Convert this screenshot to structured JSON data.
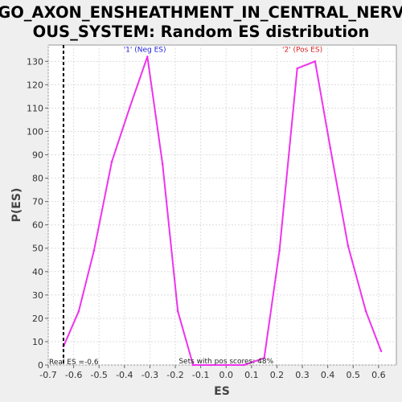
{
  "title_lines": [
    "GO_AXON_ENSHEATHMENT_IN_CENTRAL_NERV",
    "OUS_SYSTEM: Random ES distribution"
  ],
  "colors": {
    "series": "#ee33ee",
    "neg_label": "#2222dd",
    "pos_label": "#dd2222",
    "plot_bg": "#ffffff",
    "page_bg": "#efefef"
  },
  "chart_data": {
    "type": "line",
    "title": "GO_AXON_ENSHEATHMENT_IN_CENTRAL_NERVOUS_SYSTEM: Random ES distribution",
    "xlabel": "ES",
    "ylabel": "P(ES)",
    "xlim": [
      -0.7,
      0.67
    ],
    "ylim": [
      0,
      137
    ],
    "xticks": [
      -0.7,
      -0.6,
      -0.5,
      -0.4,
      -0.3,
      -0.2,
      -0.1,
      0.0,
      0.1,
      0.2,
      0.3,
      0.4,
      0.5,
      0.6
    ],
    "xtick_labels": [
      "-0.7",
      "-0.6",
      "-0.5",
      "-0.4",
      "-0.3",
      "-0.2",
      "-0.1",
      "0.0",
      "0.1",
      "0.2",
      "0.3",
      "0.4",
      "0.5",
      "0.6"
    ],
    "yticks": [
      0,
      10,
      20,
      30,
      40,
      50,
      60,
      70,
      80,
      90,
      100,
      110,
      120,
      130
    ],
    "ytick_labels": [
      "0",
      "10",
      "20",
      "30",
      "40",
      "50",
      "60",
      "70",
      "80",
      "90",
      "100",
      "110",
      "120",
      "130"
    ],
    "grid": true,
    "series": [
      {
        "x": [
          -0.64,
          -0.58,
          -0.52,
          -0.45,
          -0.38,
          -0.31,
          -0.25,
          -0.19,
          -0.13,
          -0.06,
          0.0,
          0.07,
          0.15,
          0.21,
          0.28,
          0.35,
          0.41,
          0.48,
          0.55,
          0.61
        ],
        "y": [
          8,
          23,
          49,
          87,
          110,
          132,
          86,
          23,
          0,
          0,
          0,
          0,
          3,
          49,
          127,
          130,
          93,
          51,
          23,
          6
        ]
      }
    ],
    "annotations": [
      {
        "text": "'1' (Neg ES)",
        "x": -0.32,
        "y": 134,
        "color": "#2222dd"
      },
      {
        "text": "'2' (Pos ES)",
        "x": 0.3,
        "y": 134,
        "color": "#dd2222"
      }
    ],
    "real_es": {
      "value": -0.64,
      "label": "Real ES =-0.6"
    },
    "pos_scores_text": "Sets with pos scores: 48%"
  }
}
